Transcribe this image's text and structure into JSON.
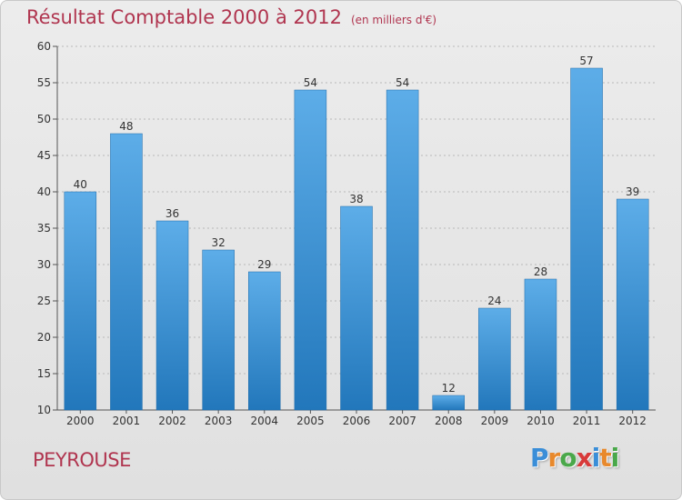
{
  "title": "Résultat Comptable 2000 à 2012",
  "subtitle": "(en milliers d'€)",
  "commune": "PEYROUSE",
  "logo": {
    "letters": [
      "P",
      "r",
      "o",
      "x",
      "i",
      "t",
      "i"
    ],
    "colors": [
      "#3a8ed8",
      "#e8892c",
      "#4aa84a",
      "#d83a3a",
      "#3a8ed8",
      "#e8892c",
      "#4aa84a"
    ]
  },
  "colors": {
    "title": "#b0354f",
    "bar_top": "#5dade8",
    "bar_bottom": "#2277bb",
    "grid": "#b8b8b8"
  },
  "chart_data": {
    "type": "bar",
    "title": "Résultat Comptable 2000 à 2012",
    "subtitle": "(en milliers d'€)",
    "categories": [
      "2000",
      "2001",
      "2002",
      "2003",
      "2004",
      "2005",
      "2006",
      "2007",
      "2008",
      "2009",
      "2010",
      "2011",
      "2012"
    ],
    "values": [
      40,
      48,
      36,
      32,
      29,
      54,
      38,
      54,
      12,
      24,
      28,
      57,
      39
    ],
    "ylim": [
      10,
      60
    ],
    "yticks": [
      10,
      15,
      20,
      25,
      30,
      35,
      40,
      45,
      50,
      55,
      60
    ],
    "grid": true,
    "xlabel": "",
    "ylabel": ""
  }
}
